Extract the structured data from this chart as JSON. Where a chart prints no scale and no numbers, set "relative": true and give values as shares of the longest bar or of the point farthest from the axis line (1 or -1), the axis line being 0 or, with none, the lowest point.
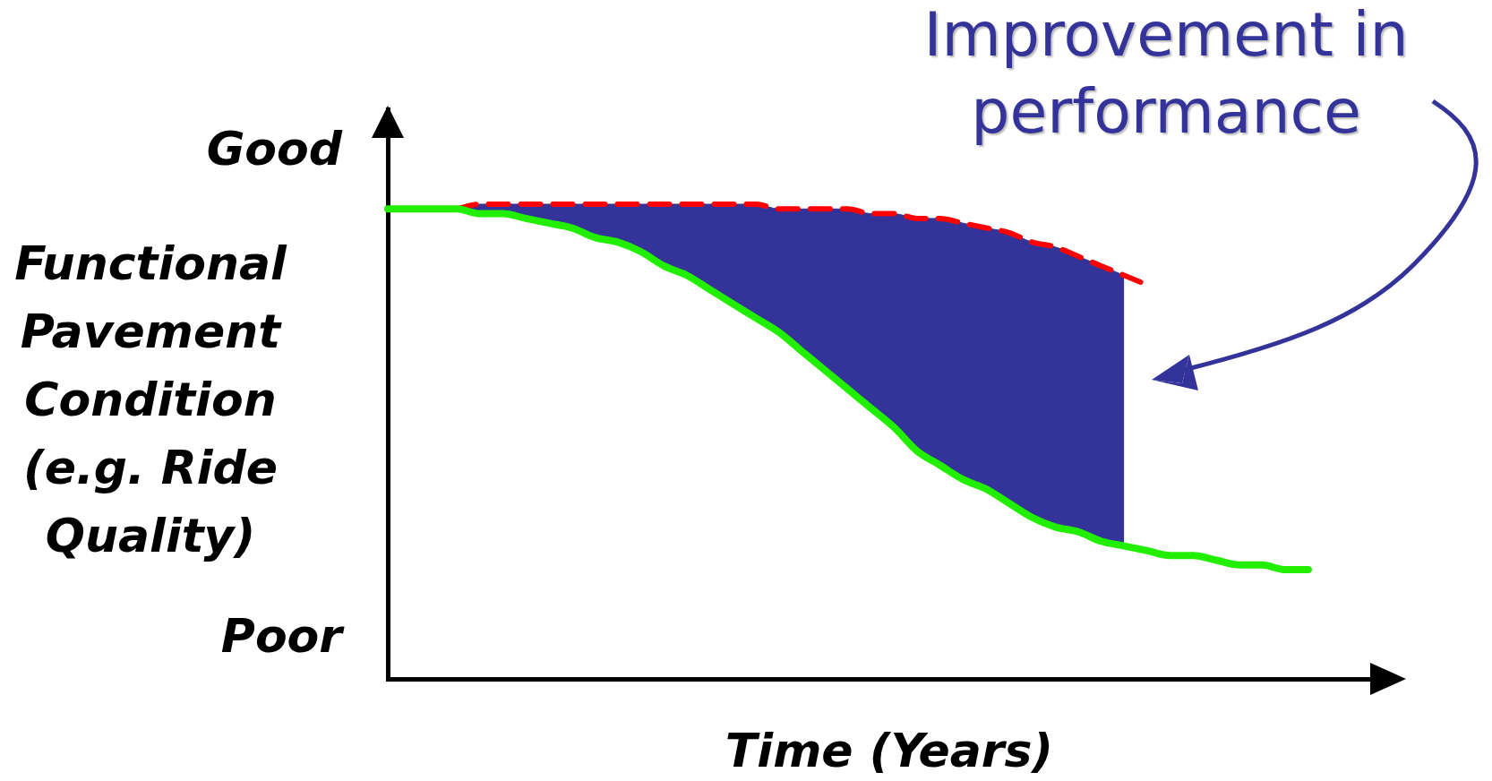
{
  "chart_data": {
    "type": "line",
    "relative": true,
    "marker": "none",
    "legend": false,
    "grid": false,
    "xlabel": "Time (Years)",
    "ylabel": "Functional Pavement Condition (e.g. Ride Quality)",
    "annotations": [
      "Good",
      "Poor",
      "Improvement in performance"
    ],
    "categories": [
      null,
      null,
      null,
      null,
      null,
      null,
      null,
      null,
      null,
      null,
      null,
      null,
      null,
      null,
      null,
      null,
      null,
      null,
      null,
      null,
      null,
      null,
      null,
      null,
      null,
      null,
      null,
      null,
      null,
      null,
      null,
      null,
      null,
      null,
      null,
      null,
      null,
      null,
      null,
      null,
      null,
      null,
      null,
      null
    ],
    "series": [
      {
        "color": "#22ee00",
        "values": [
          0.99,
          0.99,
          0.99,
          0.99,
          0.98,
          0.98,
          0.97,
          0.96,
          0.95,
          0.93,
          0.92,
          0.9,
          0.87,
          0.85,
          0.82,
          0.79,
          0.76,
          0.73,
          0.69,
          0.65,
          0.61,
          0.57,
          0.53,
          0.48,
          0.45,
          0.42,
          0.4,
          0.37,
          0.34,
          0.32,
          0.31,
          0.29,
          0.28,
          0.27,
          0.26,
          0.26,
          0.25,
          0.24,
          0.24,
          0.23,
          0.23,
          null,
          null,
          null
        ]
      },
      {
        "type": "area",
        "color": "#333399",
        "values": [
          null,
          null,
          null,
          0.99,
          1.0,
          1.0,
          1.0,
          1.0,
          1.0,
          1.0,
          1.0,
          1.0,
          1.0,
          1.0,
          1.0,
          1.0,
          1.0,
          0.99,
          0.99,
          0.99,
          0.99,
          0.98,
          0.98,
          0.97,
          0.97,
          0.96,
          0.95,
          0.94,
          0.92,
          0.91,
          0.89,
          0.87,
          0.85,
          null,
          null,
          null,
          null,
          null,
          null,
          null,
          null,
          null,
          null,
          null
        ]
      },
      {
        "color": "#ff0000",
        "line_style": "dashed",
        "values": [
          null,
          null,
          null,
          0.99,
          1.0,
          1.0,
          1.0,
          1.0,
          1.0,
          1.0,
          1.0,
          1.0,
          1.0,
          1.0,
          1.0,
          1.0,
          1.0,
          0.99,
          0.99,
          0.99,
          0.99,
          0.98,
          0.98,
          0.97,
          0.97,
          0.96,
          0.95,
          0.94,
          0.92,
          0.91,
          0.89,
          0.87,
          0.85,
          0.83,
          null,
          null,
          null,
          null,
          null,
          null,
          null,
          null,
          null,
          null
        ]
      }
    ]
  }
}
